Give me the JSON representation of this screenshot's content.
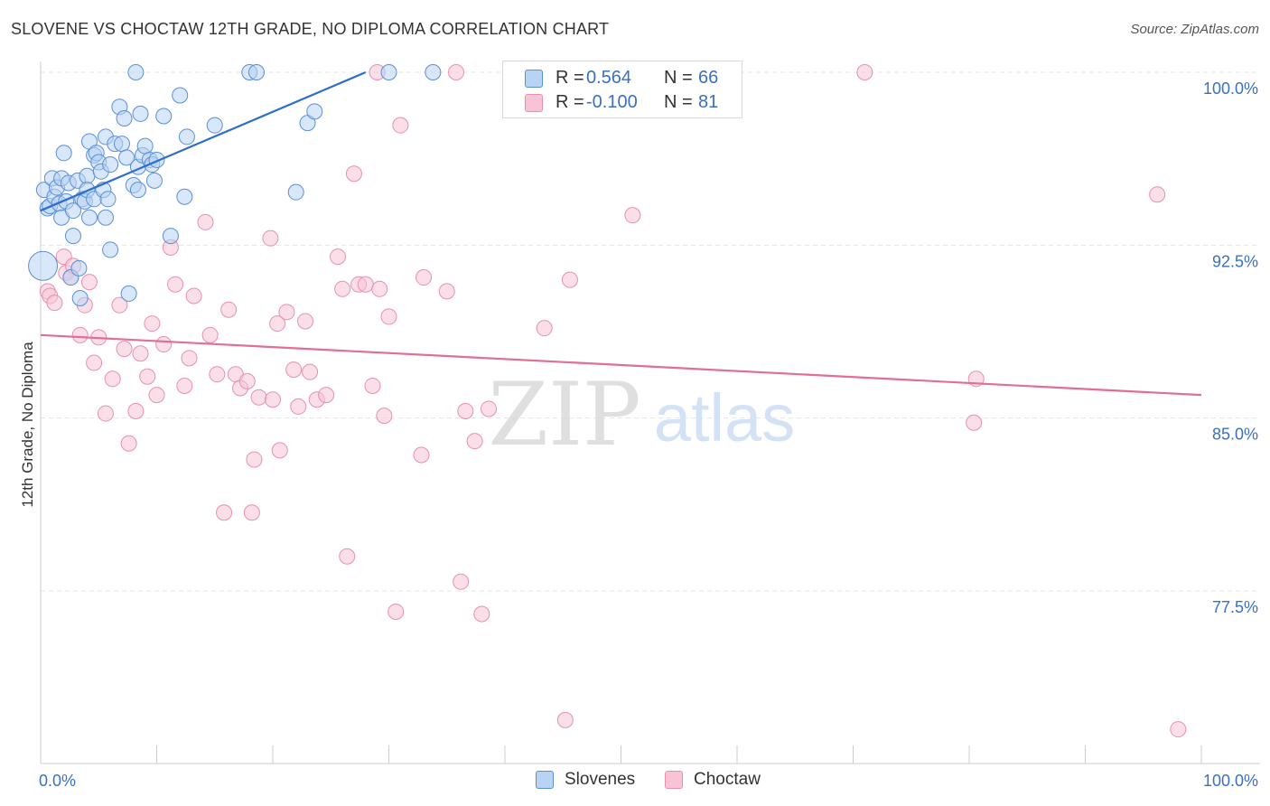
{
  "title": "SLOVENE VS CHOCTAW 12TH GRADE, NO DIPLOMA CORRELATION CHART",
  "source": "Source: ZipAtlas.com",
  "watermark": {
    "zip": "ZIP",
    "atlas": "atlas"
  },
  "legend": {
    "r_label": "R =",
    "n_label": "N =",
    "series1": {
      "r": "0.564",
      "n": "66"
    },
    "series2": {
      "r": "-0.100",
      "n": "81"
    }
  },
  "bottom_legend": {
    "series1": "Slovenes",
    "series2": "Choctaw"
  },
  "chart_data": {
    "type": "scatter",
    "title": "SLOVENE VS CHOCTAW 12TH GRADE, NO DIPLOMA CORRELATION CHART",
    "xlabel": "",
    "ylabel": "12th Grade, No Diploma",
    "xlim": [
      0,
      100
    ],
    "ylim": [
      70,
      100.7
    ],
    "x_tick_labels": [
      "0.0%",
      "100.0%"
    ],
    "y_ticks": [
      77.5,
      85.0,
      92.5,
      100.0
    ],
    "y_tick_labels": [
      "77.5%",
      "85.0%",
      "92.5%",
      "100.0%"
    ],
    "colors": {
      "series1": "#5b8fd6",
      "series1_fill": "#b8d3f4",
      "series1_line": "#2c6fcb",
      "series2": "#e790ae",
      "series2_fill": "#f8c4d5",
      "series2_line": "#e26d95"
    },
    "series": [
      {
        "name": "Slovenes",
        "r": 0.564,
        "n": 66,
        "trend": {
          "x": [
            0,
            28
          ],
          "y": [
            94.0,
            100.0
          ]
        },
        "points": [
          [
            0.2,
            91.6
          ],
          [
            0.3,
            94.9
          ],
          [
            0.6,
            94.1
          ],
          [
            0.8,
            94.2
          ],
          [
            1.0,
            95.4
          ],
          [
            1.2,
            94.6
          ],
          [
            1.4,
            95.0
          ],
          [
            1.6,
            94.3
          ],
          [
            1.8,
            95.4
          ],
          [
            1.8,
            93.7
          ],
          [
            2.0,
            96.5
          ],
          [
            2.2,
            94.4
          ],
          [
            2.4,
            95.2
          ],
          [
            2.6,
            91.1
          ],
          [
            2.8,
            94.0
          ],
          [
            2.8,
            92.9
          ],
          [
            3.2,
            95.3
          ],
          [
            3.3,
            91.5
          ],
          [
            3.4,
            90.2
          ],
          [
            3.6,
            94.5
          ],
          [
            3.8,
            94.4
          ],
          [
            4.0,
            95.5
          ],
          [
            4.0,
            94.9
          ],
          [
            4.2,
            97.0
          ],
          [
            4.2,
            93.7
          ],
          [
            4.6,
            94.5
          ],
          [
            4.6,
            96.4
          ],
          [
            4.8,
            96.5
          ],
          [
            5.0,
            96.1
          ],
          [
            5.2,
            95.7
          ],
          [
            5.4,
            94.9
          ],
          [
            5.6,
            97.2
          ],
          [
            5.6,
            93.7
          ],
          [
            5.8,
            94.5
          ],
          [
            6.0,
            96.0
          ],
          [
            6.0,
            92.3
          ],
          [
            6.4,
            96.9
          ],
          [
            6.8,
            98.5
          ],
          [
            7.0,
            96.9
          ],
          [
            7.2,
            98.0
          ],
          [
            7.4,
            96.3
          ],
          [
            7.6,
            90.4
          ],
          [
            8.0,
            95.1
          ],
          [
            8.2,
            100.0
          ],
          [
            8.4,
            94.9
          ],
          [
            8.4,
            95.9
          ],
          [
            8.6,
            98.2
          ],
          [
            8.8,
            96.4
          ],
          [
            9.0,
            96.8
          ],
          [
            9.4,
            96.2
          ],
          [
            9.6,
            96.0
          ],
          [
            9.8,
            95.3
          ],
          [
            10.0,
            96.2
          ],
          [
            10.6,
            98.1
          ],
          [
            11.2,
            92.9
          ],
          [
            12.0,
            99.0
          ],
          [
            12.4,
            94.6
          ],
          [
            12.6,
            97.2
          ],
          [
            15.0,
            97.7
          ],
          [
            18.0,
            100.0
          ],
          [
            18.6,
            100.0
          ],
          [
            22.0,
            94.8
          ],
          [
            23.0,
            97.8
          ],
          [
            23.6,
            98.3
          ],
          [
            30.0,
            100.0
          ],
          [
            33.8,
            100.0
          ]
        ]
      },
      {
        "name": "Choctaw",
        "r": -0.1,
        "n": 81,
        "trend": {
          "x": [
            0,
            100
          ],
          "y": [
            88.6,
            86.0
          ]
        },
        "points": [
          [
            0.6,
            90.5
          ],
          [
            0.8,
            90.3
          ],
          [
            1.2,
            90.0
          ],
          [
            2.0,
            92.0
          ],
          [
            2.2,
            91.3
          ],
          [
            2.6,
            91.1
          ],
          [
            2.8,
            91.6
          ],
          [
            3.4,
            88.6
          ],
          [
            3.8,
            89.9
          ],
          [
            4.2,
            90.9
          ],
          [
            4.6,
            87.4
          ],
          [
            5.0,
            88.5
          ],
          [
            5.6,
            85.2
          ],
          [
            6.2,
            86.7
          ],
          [
            6.8,
            89.9
          ],
          [
            7.2,
            88.0
          ],
          [
            7.6,
            83.9
          ],
          [
            8.2,
            85.3
          ],
          [
            8.6,
            87.8
          ],
          [
            9.2,
            86.8
          ],
          [
            9.6,
            89.1
          ],
          [
            10.0,
            86.0
          ],
          [
            10.6,
            88.2
          ],
          [
            11.2,
            92.4
          ],
          [
            11.6,
            90.8
          ],
          [
            12.4,
            86.4
          ],
          [
            12.8,
            87.6
          ],
          [
            13.2,
            90.3
          ],
          [
            14.2,
            93.5
          ],
          [
            14.6,
            88.6
          ],
          [
            15.2,
            86.9
          ],
          [
            15.8,
            80.9
          ],
          [
            16.2,
            89.7
          ],
          [
            16.8,
            86.9
          ],
          [
            17.2,
            86.3
          ],
          [
            17.8,
            86.6
          ],
          [
            18.2,
            80.9
          ],
          [
            18.4,
            83.2
          ],
          [
            18.8,
            85.9
          ],
          [
            19.8,
            92.8
          ],
          [
            20.0,
            85.8
          ],
          [
            20.4,
            89.1
          ],
          [
            20.6,
            83.6
          ],
          [
            21.2,
            89.6
          ],
          [
            21.8,
            87.1
          ],
          [
            22.2,
            85.5
          ],
          [
            22.8,
            89.2
          ],
          [
            23.2,
            87.0
          ],
          [
            23.8,
            85.8
          ],
          [
            24.6,
            86.0
          ],
          [
            25.6,
            92.0
          ],
          [
            26.0,
            90.6
          ],
          [
            26.4,
            79.0
          ],
          [
            27.0,
            95.6
          ],
          [
            27.4,
            90.8
          ],
          [
            28.0,
            90.8
          ],
          [
            28.6,
            86.4
          ],
          [
            29.2,
            90.6
          ],
          [
            29.6,
            85.1
          ],
          [
            30.0,
            89.4
          ],
          [
            30.6,
            76.6
          ],
          [
            31.0,
            97.7
          ],
          [
            32.8,
            83.4
          ],
          [
            33.0,
            91.1
          ],
          [
            35.0,
            90.5
          ],
          [
            35.8,
            100.0
          ],
          [
            36.2,
            77.9
          ],
          [
            36.6,
            85.3
          ],
          [
            37.4,
            84.0
          ],
          [
            38.0,
            76.5
          ],
          [
            38.6,
            85.4
          ],
          [
            43.4,
            88.9
          ],
          [
            45.2,
            71.9
          ],
          [
            45.6,
            91.0
          ],
          [
            51.0,
            93.8
          ],
          [
            71.0,
            100.0
          ],
          [
            80.4,
            84.8
          ],
          [
            80.6,
            86.7
          ],
          [
            96.2,
            94.7
          ],
          [
            98.0,
            71.5
          ],
          [
            29.0,
            100.0
          ]
        ]
      }
    ]
  }
}
